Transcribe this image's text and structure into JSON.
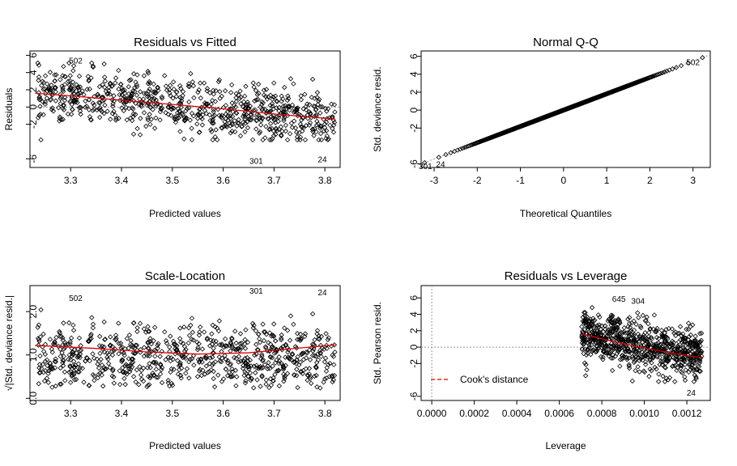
{
  "chart_data": [
    {
      "type": "scatter",
      "title": "Residuals vs Fitted",
      "xlabel": "Predicted values",
      "ylabel": "Residuals",
      "xlim": [
        3.22,
        3.83
      ],
      "ylim": [
        -7.0,
        6.5
      ],
      "xticks": [
        "3.3",
        "3.4",
        "3.5",
        "3.6",
        "3.7",
        "3.8"
      ],
      "xtick_values": [
        3.3,
        3.4,
        3.5,
        3.6,
        3.7,
        3.8
      ],
      "yticks": [
        "-6",
        "-2",
        "0",
        "2",
        "4",
        "6"
      ],
      "ytick_values": [
        -6,
        -2,
        0,
        2,
        4,
        6
      ],
      "reference_line": {
        "y": 0,
        "style": "dotted",
        "color": "#999999"
      },
      "smooth_line": {
        "color": "#dd0000",
        "x": [
          3.23,
          3.3,
          3.4,
          3.5,
          3.6,
          3.7,
          3.8,
          3.82
        ],
        "y": [
          1.6,
          1.3,
          0.8,
          0.3,
          -0.2,
          -0.8,
          -1.3,
          -1.4
        ]
      },
      "point_annotations": [
        {
          "label": "502",
          "x": 3.31,
          "y": 5.4
        },
        {
          "label": "301",
          "x": 3.665,
          "y": -6.2
        },
        {
          "label": "24",
          "x": 3.795,
          "y": -6.0
        }
      ],
      "points_description": "~1000 residuals, fitted 3.22–3.82, residuals mostly -3 to 5"
    },
    {
      "type": "scatter",
      "title": "Normal Q-Q",
      "xlabel": "Theoretical Quantiles",
      "ylabel": "Std. deviance resid.",
      "xlim": [
        -3.3,
        3.4
      ],
      "ylim": [
        -6.4,
        6.6
      ],
      "xticks": [
        "-3",
        "-2",
        "-1",
        "0",
        "1",
        "2",
        "3"
      ],
      "xtick_values": [
        -3,
        -2,
        -1,
        0,
        1,
        2,
        3
      ],
      "yticks": [
        "-6",
        "-2",
        "0",
        "2",
        "4",
        "6"
      ],
      "ytick_values": [
        -6,
        -2,
        0,
        2,
        4,
        6
      ],
      "reference_line": {
        "slope": 1.82,
        "intercept": 0,
        "style": "dotted",
        "color": "#999999"
      },
      "point_annotations": [
        {
          "label": "502",
          "x": 3.0,
          "y": 5.4
        },
        {
          "label": "301",
          "x": -3.2,
          "y": -6.2
        },
        {
          "label": "24",
          "x": -2.85,
          "y": -6.0
        }
      ]
    },
    {
      "type": "scatter",
      "title": "Scale-Location",
      "xlabel": "Predicted values",
      "ylabel": "√|Std. deviance resid.|",
      "xlim": [
        3.22,
        3.83
      ],
      "ylim": [
        -0.05,
        2.6
      ],
      "xticks": [
        "3.3",
        "3.4",
        "3.5",
        "3.6",
        "3.7",
        "3.8"
      ],
      "xtick_values": [
        3.3,
        3.4,
        3.5,
        3.6,
        3.7,
        3.8
      ],
      "yticks": [
        "0.0",
        "1.0",
        "2.0"
      ],
      "ytick_values": [
        0.0,
        1.0,
        2.0
      ],
      "smooth_line": {
        "color": "#dd0000",
        "x": [
          3.23,
          3.35,
          3.45,
          3.55,
          3.65,
          3.75,
          3.82
        ],
        "y": [
          1.22,
          1.15,
          1.07,
          1.02,
          1.05,
          1.16,
          1.23
        ]
      },
      "point_annotations": [
        {
          "label": "502",
          "x": 3.31,
          "y": 2.32
        },
        {
          "label": "301",
          "x": 3.665,
          "y": 2.49
        },
        {
          "label": "24",
          "x": 3.795,
          "y": 2.45
        }
      ]
    },
    {
      "type": "scatter",
      "title": "Residuals vs Leverage",
      "xlabel": "Leverage",
      "ylabel": "Std. Pearson resid.",
      "xlim": [
        -5e-05,
        0.00131
      ],
      "ylim": [
        -6.5,
        7.5
      ],
      "xticks": [
        "0.0000",
        "0.0002",
        "0.0004",
        "0.0006",
        "0.0008",
        "0.0010",
        "0.0012"
      ],
      "xtick_values": [
        0,
        0.0002,
        0.0004,
        0.0006,
        0.0008,
        0.001,
        0.0012
      ],
      "yticks": [
        "-6",
        "-2",
        "0",
        "2",
        "4",
        "6"
      ],
      "ytick_values": [
        -6,
        -2,
        0,
        2,
        4,
        6
      ],
      "reference_line": {
        "y": 0,
        "style": "dotted",
        "color": "#999999"
      },
      "reference_vline": {
        "x": 0,
        "style": "dotted",
        "color": "#999999"
      },
      "smooth_line": {
        "color": "#dd0000",
        "x": [
          0.000705,
          0.0008,
          0.0009,
          0.001,
          0.0011,
          0.00127
        ],
        "y": [
          1.6,
          1.0,
          0.4,
          -0.1,
          -0.6,
          -1.3
        ]
      },
      "legend": {
        "label": "Cook's distance",
        "position": "bottom-left",
        "color": "#dd0000",
        "style": "dashed"
      },
      "point_annotations": [
        {
          "label": "645",
          "x": 0.00088,
          "y": 5.9
        },
        {
          "label": "304",
          "x": 0.00097,
          "y": 5.7
        },
        {
          "label": "24",
          "x": 0.00122,
          "y": -5.5
        }
      ]
    }
  ]
}
